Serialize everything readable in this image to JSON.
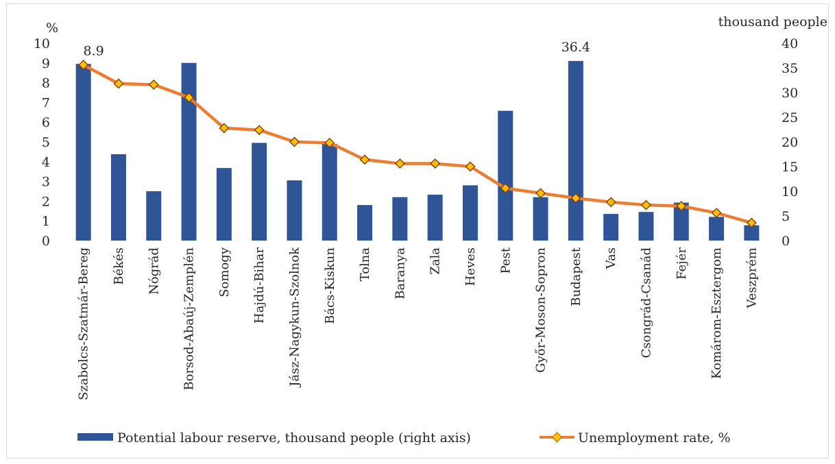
{
  "chart_data": {
    "type": "bar+line",
    "categories": [
      "Szabolcs-Szatmár-Bereg",
      "Békés",
      "Nógrád",
      "Borsod-Abaúj-Zemplén",
      "Somogy",
      "Hajdú-Bihar",
      "Jász-Nagykun-Szolnok",
      "Bács-Kiskun",
      "Tolna",
      "Baranya",
      "Zala",
      "Heves",
      "Pest",
      "Győr-Moson-Sopron",
      "Budapest",
      "Vas",
      "Csongrád-Csanád",
      "Fejér",
      "Komárom-Esztergom",
      "Veszprém"
    ],
    "series": [
      {
        "name": "Potential labour reserve, thousand people (right axis)",
        "type": "bar",
        "axis": "right",
        "color": "#2f5597",
        "values": [
          35.8,
          17.5,
          10.0,
          36.0,
          14.7,
          19.8,
          12.2,
          19.6,
          7.2,
          8.8,
          9.3,
          11.2,
          26.3,
          8.8,
          36.4,
          5.4,
          5.8,
          7.7,
          4.8,
          3.1
        ]
      },
      {
        "name": "Unemployment rate, %",
        "type": "line",
        "axis": "left",
        "color": "#ed7d31",
        "marker_color": "#ffc000",
        "values": [
          8.9,
          7.95,
          7.9,
          7.25,
          5.7,
          5.6,
          5.0,
          4.95,
          4.1,
          3.9,
          3.9,
          3.75,
          2.65,
          2.4,
          2.15,
          1.95,
          1.8,
          1.75,
          1.4,
          0.9
        ]
      }
    ],
    "data_labels": [
      {
        "series": 1,
        "index": 0,
        "text": "8.9"
      },
      {
        "series": 0,
        "index": 14,
        "text": "36.4"
      }
    ],
    "y_left": {
      "unit": "%",
      "min": 0,
      "max": 10,
      "ticks": [
        "0",
        "1",
        "2",
        "3",
        "4",
        "5",
        "6",
        "7",
        "8",
        "9",
        "10"
      ]
    },
    "y_right": {
      "unit": "thousand people",
      "min": 0,
      "max": 40,
      "ticks": [
        "0",
        "5",
        "10",
        "15",
        "20",
        "25",
        "30",
        "35",
        "40"
      ]
    },
    "grid": false,
    "legend_position": "bottom"
  }
}
